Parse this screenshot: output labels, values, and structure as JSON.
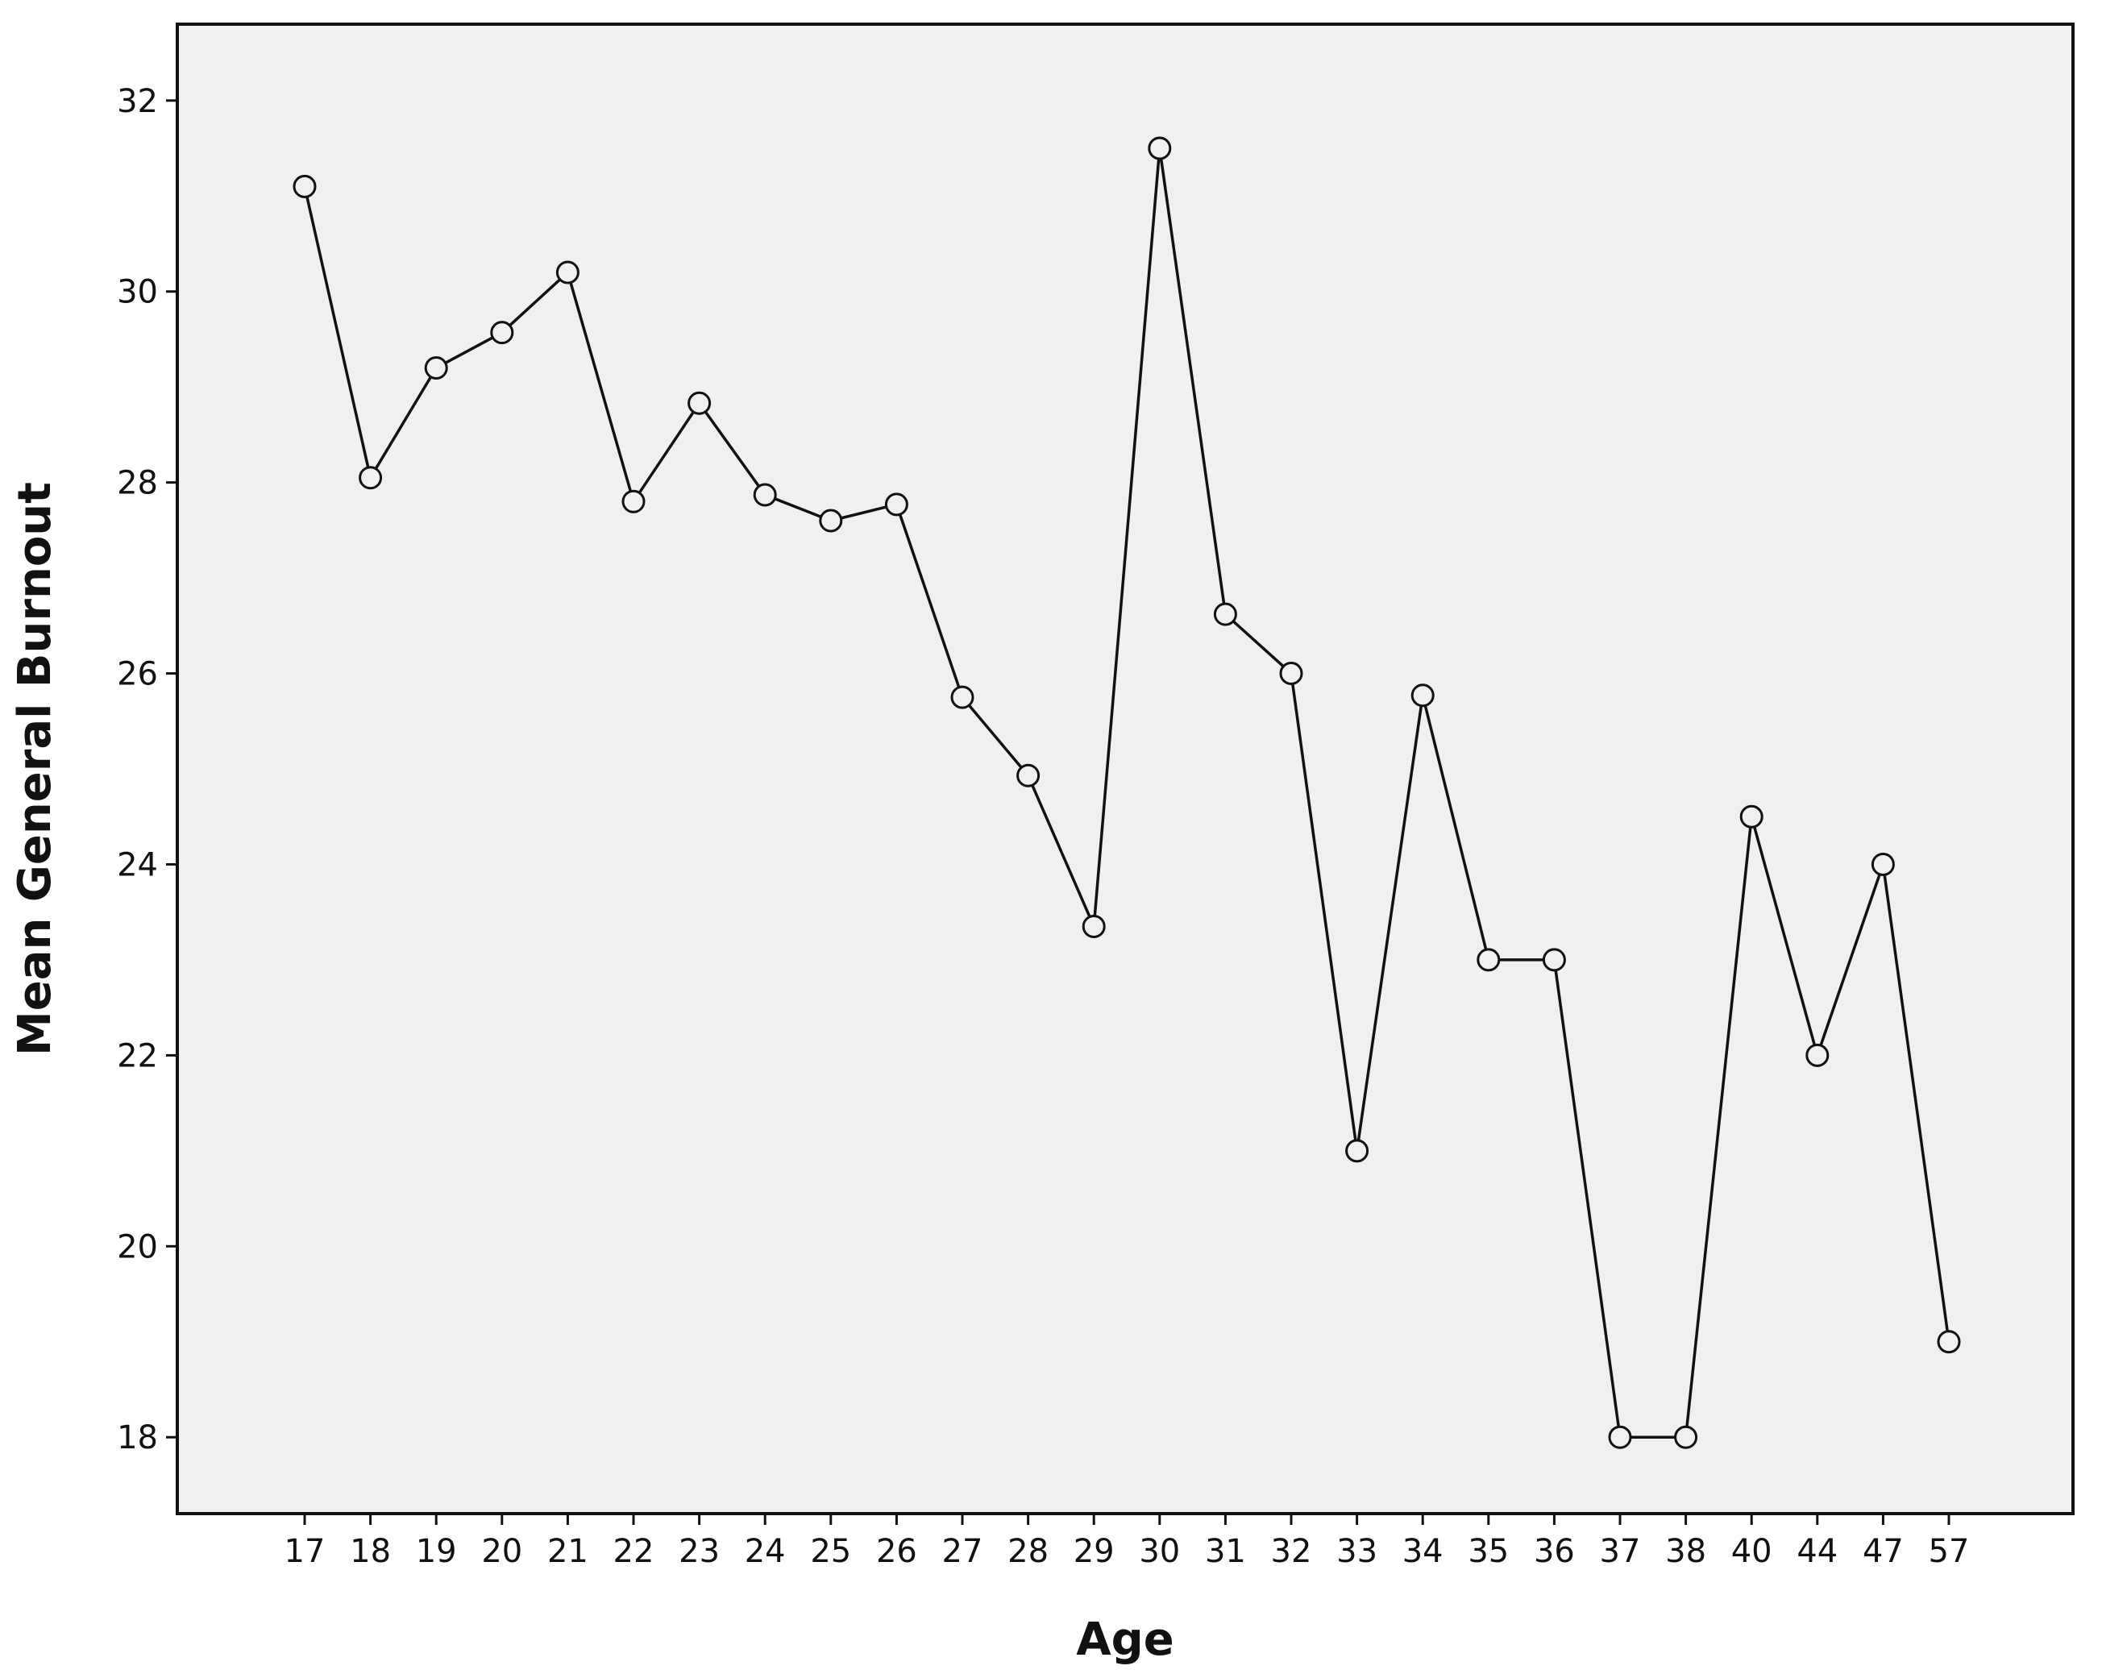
{
  "chart_data": {
    "type": "line",
    "title": "",
    "xlabel": "Age",
    "ylabel": "Mean General Burnout",
    "categories": [
      "17",
      "18",
      "19",
      "20",
      "21",
      "22",
      "23",
      "24",
      "25",
      "26",
      "27",
      "28",
      "29",
      "30",
      "31",
      "32",
      "33",
      "34",
      "35",
      "36",
      "37",
      "38",
      "40",
      "44",
      "47",
      "57"
    ],
    "series": [
      {
        "values": [
          31.1,
          28.05,
          29.2,
          29.57,
          30.2,
          27.8,
          28.83,
          27.87,
          27.6,
          27.77,
          25.75,
          24.93,
          23.35,
          31.5,
          26.62,
          26.0,
          21.0,
          25.77,
          23.0,
          23.0,
          18.0,
          18.0,
          24.5,
          22.0,
          24.0,
          19.0
        ]
      }
    ],
    "yticks": [
      18,
      20,
      22,
      24,
      26,
      28,
      30,
      32
    ],
    "ylim": [
      17.2,
      32.8
    ],
    "grid": false,
    "legend": "none",
    "colors": {
      "plot_background": "#f0f0f0",
      "line": "#111111",
      "marker_fill": "#f0f0f0",
      "axis": "#111111"
    }
  }
}
